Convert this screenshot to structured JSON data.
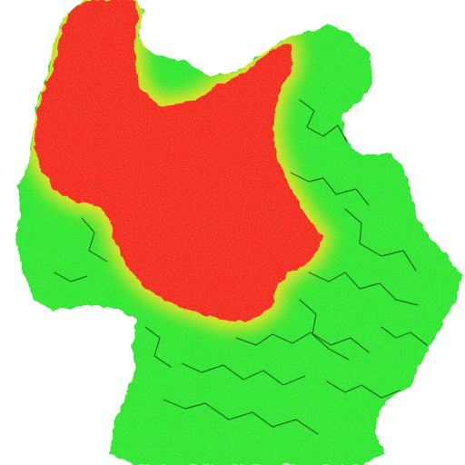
{
  "map": {
    "colors": {
      "background": "#ffffff",
      "low": "#2ee62e",
      "low_dark": "#1fc21f",
      "transition": "#e8e020",
      "high": "#f32a1a",
      "border_lines": "#1a3a1a",
      "speckle_light": "#c8f5c0"
    },
    "regions": [
      {
        "name": "red-zone",
        "level": "high"
      },
      {
        "name": "green-zone",
        "level": "low"
      }
    ]
  }
}
